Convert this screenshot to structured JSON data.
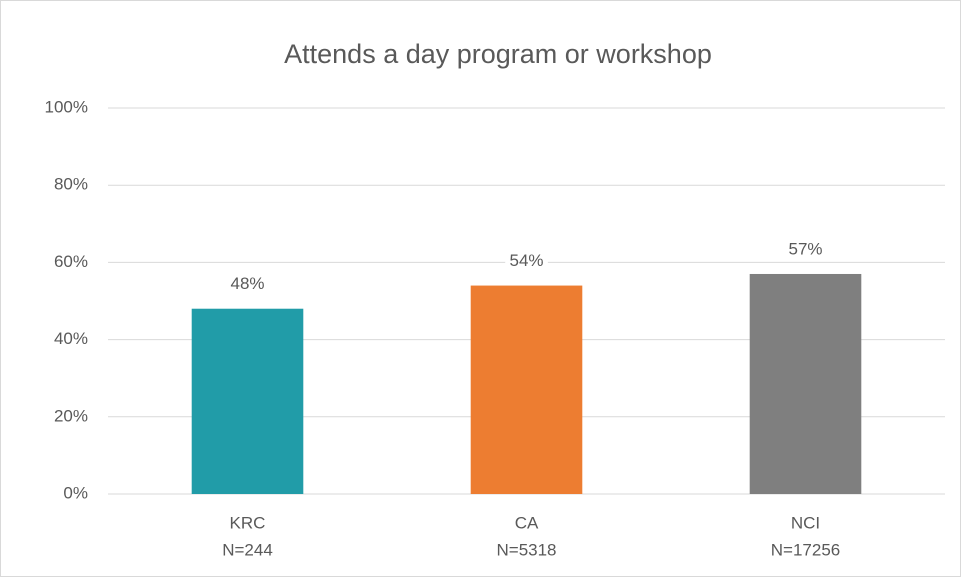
{
  "chart_data": {
    "type": "bar",
    "title": "Attends a day program or workshop",
    "categories": [
      "KRC",
      "CA",
      "NCI"
    ],
    "sample_sizes": [
      "N=244",
      "N=5318",
      "N=17256"
    ],
    "values": [
      48,
      54,
      57
    ],
    "value_labels": [
      "48%",
      "54%",
      "57%"
    ],
    "colors": [
      "#219ca8",
      "#ed7d31",
      "#7f7f7f"
    ],
    "ylim": [
      0,
      100
    ],
    "yticks": [
      {
        "value": 0,
        "label": "0%"
      },
      {
        "value": 20,
        "label": "20%"
      },
      {
        "value": 40,
        "label": "40%"
      },
      {
        "value": 60,
        "label": "60%"
      },
      {
        "value": 80,
        "label": "80%"
      },
      {
        "value": 100,
        "label": "100%"
      }
    ],
    "grid": true
  }
}
